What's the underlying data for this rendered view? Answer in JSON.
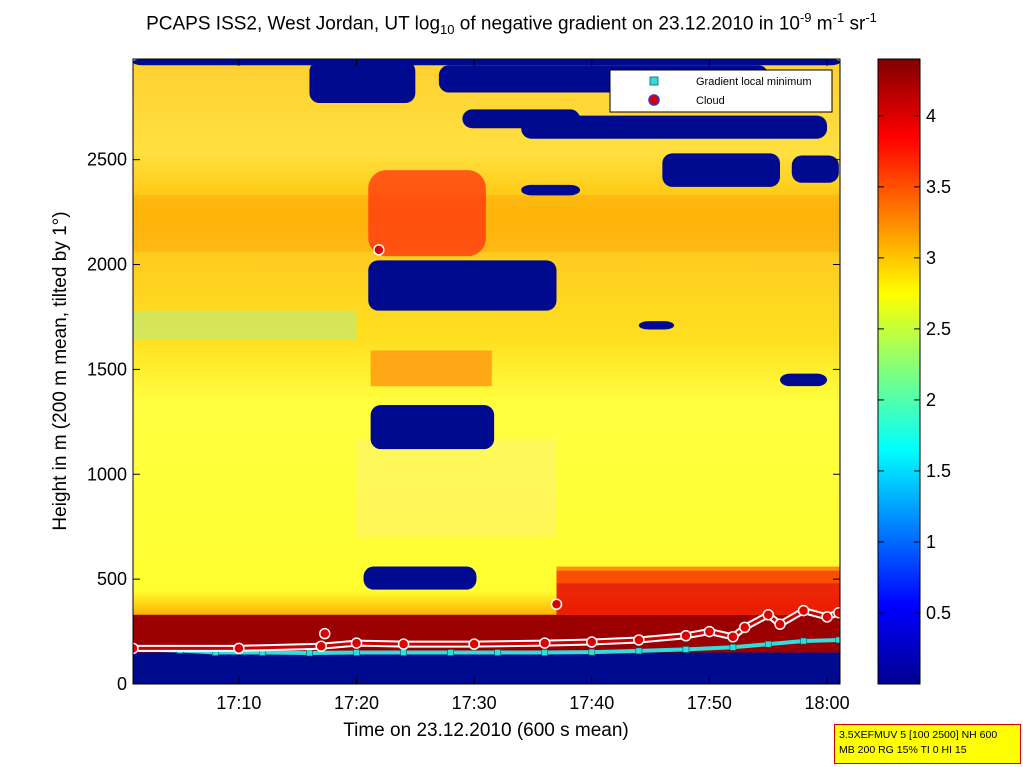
{
  "title": {
    "prefix": "PCAPS ISS2, West Jordan, UT log",
    "sub1": "10",
    "mid1": " of negative gradient on 23.12.2010 in 10",
    "sup1": "-9",
    "mid2": " m",
    "sup2": "-1",
    "mid3": " sr",
    "sup3": "-1"
  },
  "chart_data": {
    "type": "heatmap",
    "xlabel": "Time on 23.12.2010 (600 s mean)",
    "ylabel": "Height in m (200 m mean, tilted by 1°)",
    "x_ticks": [
      "17:10",
      "17:20",
      "17:30",
      "17:40",
      "17:50",
      "18:00"
    ],
    "x_tick_minutes": [
      10,
      20,
      30,
      40,
      50,
      60
    ],
    "x_range_minutes": [
      1,
      61.1
    ],
    "y_ticks": [
      "0",
      "500",
      "1000",
      "1500",
      "2000",
      "2500"
    ],
    "y_tick_values": [
      0,
      500,
      1000,
      1500,
      2000,
      2500
    ],
    "ylim": [
      0,
      2980
    ],
    "colorbar": {
      "range": [
        0,
        4.4
      ],
      "ticks": [
        "0.5",
        "1",
        "1.5",
        "2",
        "2.5",
        "3",
        "3.5",
        "4"
      ],
      "tick_values": [
        0.5,
        1,
        1.5,
        2,
        2.5,
        3,
        3.5,
        4
      ],
      "colormap": "jet"
    },
    "legend": {
      "placement": "top-right",
      "entries": [
        {
          "label": "Gradient local minimum",
          "marker": "square",
          "color": "#33dddd"
        },
        {
          "label": "Cloud",
          "marker": "circle",
          "color": "#dd0000"
        }
      ]
    },
    "colors": {
      "background_field": "#ffff20",
      "blue_region": "#000a8f"
    },
    "series": [
      {
        "name": "Gradient local minimum",
        "x": [
          1,
          5,
          8,
          12,
          16,
          20,
          24,
          28,
          32,
          36,
          40,
          44,
          48,
          52,
          55,
          58,
          61
        ],
        "y": [
          165,
          160,
          150,
          150,
          148,
          150,
          150,
          150,
          150,
          150,
          152,
          158,
          165,
          175,
          190,
          205,
          210
        ]
      },
      {
        "name": "Cloud",
        "x": [
          17.3,
          21.9,
          37.0,
          1,
          10,
          17,
          20,
          24,
          30,
          36,
          40,
          44,
          48,
          50,
          52,
          53,
          55,
          56,
          58,
          60,
          61
        ],
        "y": [
          240,
          2070,
          380,
          170,
          170,
          180,
          195,
          190,
          190,
          195,
          200,
          210,
          230,
          250,
          225,
          270,
          330,
          285,
          350,
          320,
          340
        ]
      }
    ]
  },
  "stamp": {
    "line1": "3.5XEFMUV 5 [100 2500] NH 600",
    "line2": "MB 200 RG 15% TI 0 HI 15"
  }
}
